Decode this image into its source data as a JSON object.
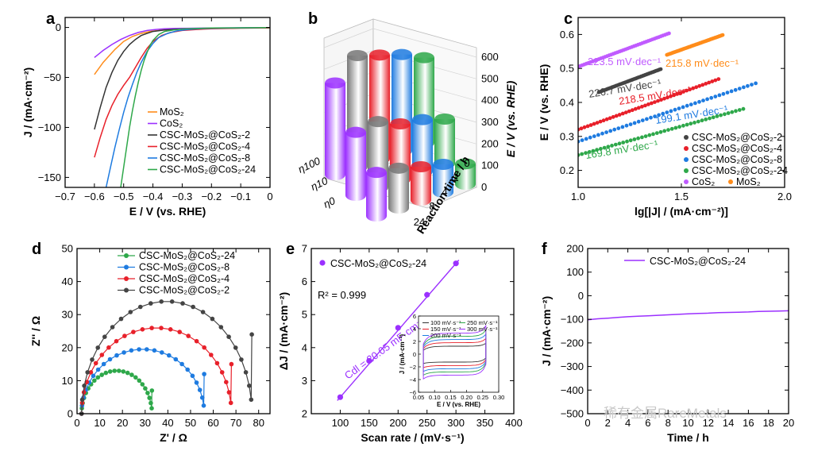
{
  "watermark": "稀有金属RareMetals",
  "chart_data": [
    {
      "panel": "a",
      "type": "line",
      "xlabel": "E / V (vs. RHE)",
      "ylabel": "J / (mA·cm⁻²)",
      "xlim": [
        -0.7,
        0.0
      ],
      "ylim": [
        -160,
        10
      ],
      "xticks": [
        "−0.7",
        "−0.6",
        "−0.5",
        "−0.4",
        "−0.3",
        "−0.2",
        "−0.1",
        "0"
      ],
      "yticks": [
        "0",
        "−50",
        "−100",
        "−150"
      ],
      "legend": [
        "MoS₂",
        "CoS₂",
        "CSC-MoS₂@CoS₂-2",
        "CSC-MoS₂@CoS₂-4",
        "CSC-MoS₂@CoS₂-8",
        "CSC-MoS₂@CoS₂-24"
      ],
      "series": [
        {
          "name": "MoS₂",
          "color": "#ff8c1a",
          "x": [
            -0.6,
            -0.57,
            -0.53,
            -0.5,
            -0.47,
            -0.44,
            -0.41,
            -0.38,
            -0.35,
            -0.3,
            -0.25,
            -0.2,
            -0.1,
            0
          ],
          "y": [
            -47,
            -35,
            -22,
            -14,
            -9,
            -6,
            -4,
            -3,
            -2,
            -1.5,
            -1,
            -0.8,
            -0.5,
            -0.3
          ]
        },
        {
          "name": "CoS₂",
          "color": "#9b30ff",
          "x": [
            -0.6,
            -0.57,
            -0.54,
            -0.51,
            -0.48,
            -0.45,
            -0.42,
            -0.39,
            -0.36,
            -0.32,
            -0.28,
            -0.2,
            -0.1,
            0
          ],
          "y": [
            -30,
            -23,
            -17,
            -12,
            -8,
            -5,
            -3,
            -2,
            -1.3,
            -1,
            -0.8,
            -0.5,
            -0.3,
            -0.2
          ]
        },
        {
          "name": "CSC-MoS₂@CoS₂-2",
          "color": "#333333",
          "x": [
            -0.6,
            -0.58,
            -0.56,
            -0.54,
            -0.52,
            -0.5,
            -0.48,
            -0.46,
            -0.44,
            -0.42,
            -0.4,
            -0.36,
            -0.3,
            -0.2,
            -0.1,
            0
          ],
          "y": [
            -102,
            -80,
            -60,
            -45,
            -33,
            -24,
            -17,
            -12,
            -8,
            -6,
            -4,
            -2.5,
            -1.5,
            -1,
            -0.6,
            -0.4
          ]
        },
        {
          "name": "CSC-MoS₂@CoS₂-4",
          "color": "#e8202a",
          "x": [
            -0.6,
            -0.58,
            -0.56,
            -0.54,
            -0.52,
            -0.5,
            -0.48,
            -0.46,
            -0.44,
            -0.42,
            -0.4,
            -0.37,
            -0.34,
            -0.3,
            -0.25,
            -0.2,
            -0.1,
            0
          ],
          "y": [
            -130,
            -110,
            -92,
            -78,
            -67,
            -58,
            -50,
            -40,
            -30,
            -21,
            -14,
            -8,
            -5,
            -3,
            -2,
            -1.3,
            -0.7,
            -0.4
          ]
        },
        {
          "name": "CSC-MoS₂@CoS₂-8",
          "color": "#1e7be0",
          "x": [
            -0.56,
            -0.545,
            -0.53,
            -0.515,
            -0.5,
            -0.485,
            -0.47,
            -0.455,
            -0.44,
            -0.42,
            -0.4,
            -0.38,
            -0.35,
            -0.32,
            -0.28,
            -0.24,
            -0.2,
            -0.1,
            0
          ],
          "y": [
            -160,
            -140,
            -120,
            -102,
            -85,
            -70,
            -57,
            -45,
            -35,
            -24,
            -16,
            -10,
            -6,
            -3.5,
            -2,
            -1.2,
            -0.8,
            -0.4,
            -0.2
          ]
        },
        {
          "name": "CSC-MoS₂@CoS₂-24",
          "color": "#2ea84a",
          "x": [
            -0.51,
            -0.5,
            -0.49,
            -0.48,
            -0.47,
            -0.46,
            -0.45,
            -0.44,
            -0.43,
            -0.42,
            -0.41,
            -0.4,
            -0.38,
            -0.36,
            -0.33,
            -0.3,
            -0.25,
            -0.2,
            -0.1,
            0
          ],
          "y": [
            -160,
            -140,
            -120,
            -100,
            -83,
            -68,
            -55,
            -43,
            -33,
            -25,
            -18,
            -13,
            -7,
            -4,
            -2.5,
            -1.5,
            -1,
            -0.6,
            -0.3,
            -0.2
          ]
        }
      ]
    },
    {
      "panel": "b",
      "type": "bar",
      "zlabel": "E / V (vs. RHE)",
      "ylabel": "Reaction time / h",
      "zticks": [
        "0",
        "100",
        "200",
        "300",
        "400",
        "500",
        "600"
      ],
      "yticks": [
        "0",
        "2",
        "4",
        "8",
        "24"
      ],
      "xticks": [
        "η100",
        "η10",
        "η0"
      ],
      "categories_time": [
        "0",
        "2",
        "4",
        "8",
        "24"
      ],
      "metrics": [
        "η100",
        "η10",
        "η0"
      ],
      "colors": {
        "0": "#9b30ff",
        "2": "#777777",
        "4": "#e8202a",
        "8": "#1e7be0",
        "24": "#2ea84a"
      },
      "values": {
        "η100": {
          "0": 495,
          "2": 600,
          "4": 560,
          "8": 520,
          "24": 460
        },
        "η10": {
          "0": 340,
          "2": 355,
          "4": 300,
          "8": 280,
          "24": 240
        },
        "η0": {
          "0": 235,
          "2": 215,
          "4": 180,
          "8": 150,
          "24": 110
        }
      }
    },
    {
      "panel": "c",
      "type": "scatter",
      "xlabel": "lg[|J| / (mA·cm⁻²)]",
      "ylabel": "E / V (vs. RHE)",
      "xlim": [
        1.0,
        2.0
      ],
      "ylim": [
        0.15,
        0.65
      ],
      "xticks": [
        "1.0",
        "1.5",
        "2.0"
      ],
      "yticks": [
        "0.2",
        "0.3",
        "0.4",
        "0.5",
        "0.6"
      ],
      "legend": [
        "CSC-MoS₂@CoS₂-2",
        "CSC-MoS₂@CoS₂-4",
        "CSC-MoS₂@CoS₂-8",
        "CSC-MoS₂@CoS₂-24",
        "CoS₂",
        "MoS₂"
      ],
      "series": [
        {
          "name": "CoS₂",
          "color": "#c05bff",
          "x0": 1.0,
          "x1": 1.44,
          "slope": 0.2235,
          "y0": 0.505,
          "label": "223.5 mV·dec⁻¹"
        },
        {
          "name": "MoS₂",
          "color": "#ff8c1a",
          "x0": 1.43,
          "x1": 1.7,
          "slope": 0.2158,
          "y0": 0.54,
          "label": "215.8 mV·dec⁻¹"
        },
        {
          "name": "CSC-MoS₂@CoS₂-2",
          "color": "#444444",
          "x0": 1.1,
          "x1": 1.4,
          "slope": 0.2267,
          "y0": 0.43,
          "label": "226.7 mV·dec⁻¹"
        },
        {
          "name": "CSC-MoS₂@CoS₂-4",
          "color": "#e8202a",
          "x0": 1.0,
          "x1": 1.68,
          "slope": 0.2185,
          "y0": 0.32,
          "label": "218.5 mV·dec⁻¹"
        },
        {
          "name": "CSC-MoS₂@CoS₂-8",
          "color": "#1e7be0",
          "x0": 1.0,
          "x1": 1.86,
          "slope": 0.1991,
          "y0": 0.285,
          "label": "199.1 mV·dec⁻¹"
        },
        {
          "name": "CSC-MoS₂@CoS₂-24",
          "color": "#2ea84a",
          "x0": 1.0,
          "x1": 1.8,
          "slope": 0.1698,
          "y0": 0.245,
          "label": "169.8 mV·dec⁻¹"
        }
      ]
    },
    {
      "panel": "d",
      "type": "scatter",
      "xlabel": "Z' / Ω",
      "ylabel": "Z'' / Ω",
      "xlim": [
        0,
        85
      ],
      "ylim": [
        0,
        50
      ],
      "xticks": [
        "0",
        "10",
        "20",
        "30",
        "40",
        "50",
        "60",
        "70",
        "80"
      ],
      "yticks": [
        "0",
        "10",
        "20",
        "30",
        "40",
        "50"
      ],
      "legend": [
        "CSC-MoS₂@CoS₂-24",
        "CSC-MoS₂@CoS₂-8",
        "CSC-MoS₂@CoS₂-4",
        "CSC-MoS₂@CoS₂-2"
      ],
      "series": [
        {
          "name": "CSC-MoS₂@CoS₂-24",
          "color": "#2ea84a",
          "r0": 2,
          "r1": 33,
          "peak": 13,
          "end": 7
        },
        {
          "name": "CSC-MoS₂@CoS₂-8",
          "color": "#1e7be0",
          "r0": 2,
          "r1": 56,
          "peak": 19.5,
          "end": 12
        },
        {
          "name": "CSC-MoS₂@CoS₂-4",
          "color": "#e8202a",
          "r0": 2,
          "r1": 68,
          "peak": 26,
          "end": 15
        },
        {
          "name": "CSC-MoS₂@CoS₂-2",
          "color": "#444444",
          "r0": 2,
          "r1": 77,
          "peak": 34,
          "end": 24
        }
      ]
    },
    {
      "panel": "e",
      "type": "scatter",
      "xlabel": "Scan rate / (mV·s⁻¹)",
      "ylabel": "ΔJ / (mA·cm⁻²)",
      "xlim": [
        50,
        400
      ],
      "ylim": [
        2,
        7
      ],
      "xticks": [
        "100",
        "150",
        "200",
        "250",
        "300",
        "350",
        "400"
      ],
      "yticks": [
        "2",
        "3",
        "4",
        "5",
        "6",
        "7"
      ],
      "legend": [
        "CSC-MoS₂@CoS₂-24"
      ],
      "r2": "R² = 0.999",
      "cdl": "Cdl = 20.05 mF·cm⁻²",
      "x": [
        100,
        150,
        200,
        250,
        300
      ],
      "y": [
        2.5,
        3.6,
        4.6,
        5.6,
        6.55
      ],
      "color": "#9b30ff",
      "inset": {
        "xlabel": "E / V (vs. RHE)",
        "ylabel": "J / (mA·cm⁻²)",
        "xlim": [
          0.05,
          0.3
        ],
        "ylim": [
          -6,
          6
        ],
        "xticks": [
          "0.05",
          "0.10",
          "0.15",
          "0.20",
          "0.25",
          "0.30"
        ],
        "yticks": [
          "6",
          "4",
          "2",
          "0",
          "−2",
          "−4",
          "−6"
        ],
        "legend": [
          "100 mV·s⁻¹",
          "150 mV·s⁻¹",
          "200 mV·s⁻¹",
          "250 mV·s⁻¹",
          "300 mV·s⁻¹"
        ],
        "series": [
          {
            "name": "100 mV·s⁻¹",
            "color": "#333333",
            "amp": 1.25
          },
          {
            "name": "150 mV·s⁻¹",
            "color": "#e8202a",
            "amp": 1.8
          },
          {
            "name": "200 mV·s⁻¹",
            "color": "#1e7be0",
            "amp": 2.3
          },
          {
            "name": "250 mV·s⁻¹",
            "color": "#2ea84a",
            "amp": 2.8
          },
          {
            "name": "300 mV·s⁻¹",
            "color": "#9b30ff",
            "amp": 3.3
          }
        ]
      }
    },
    {
      "panel": "f",
      "type": "line",
      "xlabel": "Time / h",
      "ylabel": "J / (mA·cm⁻²)",
      "xlim": [
        0,
        20
      ],
      "ylim": [
        -500,
        200
      ],
      "xticks": [
        "0",
        "2",
        "4",
        "6",
        "8",
        "10",
        "12",
        "14",
        "16",
        "18",
        "20"
      ],
      "yticks": [
        "200",
        "100",
        "0",
        "−100",
        "−200",
        "−300",
        "−400",
        "−500"
      ],
      "legend": [
        "CSC-MoS₂@CoS₂-24"
      ],
      "color": "#9b30ff",
      "x": [
        0,
        1,
        2,
        3,
        4,
        5,
        6,
        7,
        8,
        9,
        10,
        11,
        12,
        13,
        14,
        15,
        16,
        17,
        18,
        19,
        20
      ],
      "y": [
        -102,
        -98,
        -95,
        -92,
        -89,
        -87,
        -85,
        -83,
        -81,
        -79,
        -77,
        -75,
        -74,
        -72,
        -71,
        -70,
        -69,
        -67,
        -66,
        -65,
        -64
      ]
    }
  ],
  "panel_labels": [
    "a",
    "b",
    "c",
    "d",
    "e",
    "f"
  ]
}
